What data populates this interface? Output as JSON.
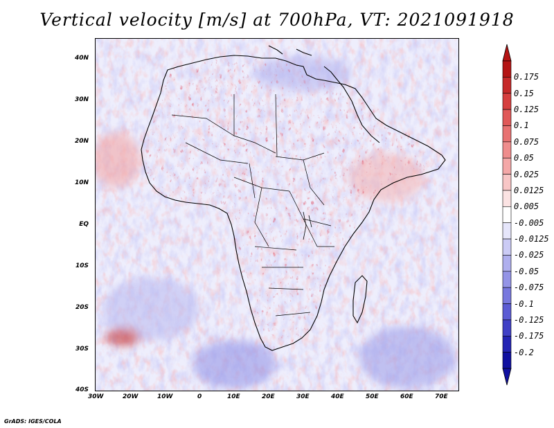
{
  "title": "Vertical velocity [m/s] at 700hPa, VT: 2021091918",
  "map": {
    "region": "Africa and Arabian Peninsula",
    "lat_range": [
      -40,
      45
    ],
    "lon_range": [
      -30,
      75
    ],
    "lat_labels": [
      "40N",
      "30N",
      "20N",
      "10N",
      "EQ",
      "10S",
      "20S",
      "30S",
      "40S"
    ],
    "lon_labels": [
      "30W",
      "20W",
      "10W",
      "0",
      "10E",
      "20E",
      "30E",
      "40E",
      "50E",
      "60E",
      "70E"
    ]
  },
  "legend": {
    "labels": [
      "0.175",
      "0.15",
      "0.125",
      "0.1",
      "0.075",
      "0.05",
      "0.025",
      "0.0125",
      "0.005",
      "-0.005",
      "-0.0125",
      "-0.025",
      "-0.05",
      "-0.075",
      "-0.1",
      "-0.125",
      "-0.175",
      "-0.2"
    ],
    "colors": [
      "#b41414",
      "#c62a2a",
      "#d63f3f",
      "#e05858",
      "#e87272",
      "#ef8d8d",
      "#f4a8a8",
      "#f8c6c6",
      "#fbe3e3",
      "#ffffff",
      "#e6e6fb",
      "#cbcbf5",
      "#afafee",
      "#9494e6",
      "#7878de",
      "#5c5cd4",
      "#4040c6",
      "#2424b4",
      "#1010a0"
    ]
  },
  "credit": "GrADS: IGES/COLA"
}
